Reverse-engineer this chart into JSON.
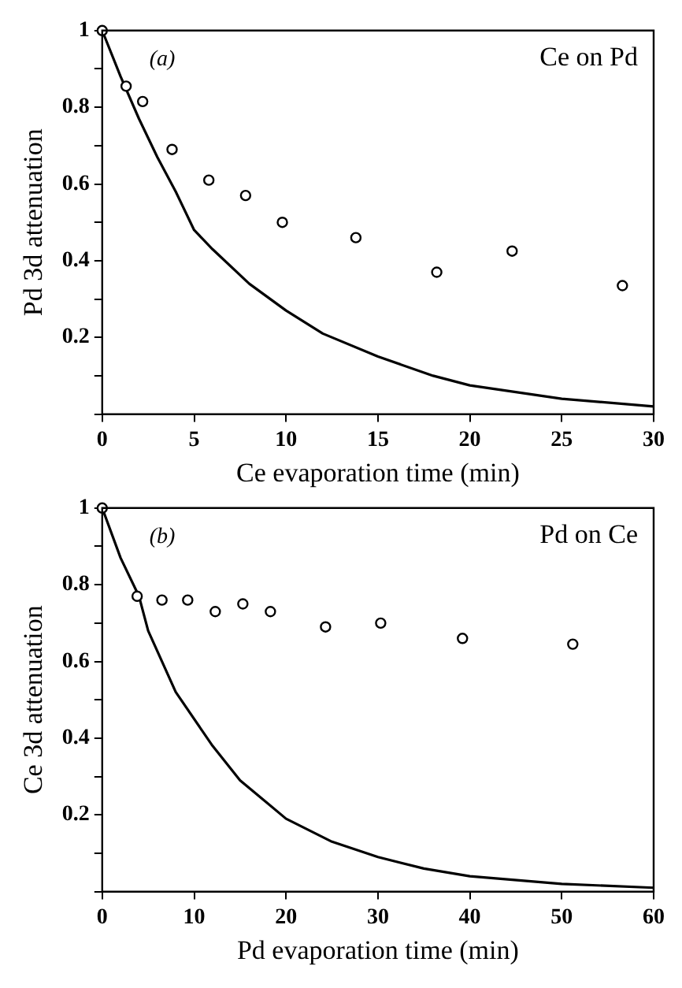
{
  "chart_data": [
    {
      "type": "scatter",
      "xlabel": "Ce evaporation time (min)",
      "ylabel": "Pd 3d attenuation",
      "annotations": [
        "(a)",
        "Ce on Pd"
      ],
      "xlim": [
        0,
        30
      ],
      "xticks": [
        0,
        5,
        10,
        15,
        20,
        25,
        30
      ],
      "ylim": [
        0,
        1
      ],
      "yticks": [
        {
          "value": 0,
          "label": null
        },
        {
          "value": 0.1,
          "label": null
        },
        0.2,
        {
          "value": 0.3,
          "label": null
        },
        0.4,
        {
          "value": 0.5,
          "label": null
        },
        0.6,
        {
          "value": 0.7,
          "label": null
        },
        0.8,
        {
          "value": 0.9,
          "label": null
        },
        1
      ],
      "grid": false,
      "legend": false,
      "series": [
        {
          "marker": "circle",
          "color": "#000000",
          "x": [
            0,
            1.3,
            2.2,
            3.8,
            5.8,
            7.8,
            9.8,
            13.8,
            18.2,
            22.3,
            28.3
          ],
          "values": [
            1,
            0.855,
            0.815,
            0.69,
            0.61,
            0.57,
            0.5,
            0.46,
            0.37,
            0.425,
            0.335
          ]
        },
        {
          "type": "line",
          "marker": "none",
          "line_style": "solid",
          "color": "#000000",
          "x": [
            0,
            1,
            2,
            3,
            4,
            5,
            6,
            8,
            10,
            12,
            15,
            18,
            20,
            25,
            30
          ],
          "values": [
            1,
            0.88,
            0.77,
            0.67,
            0.58,
            0.48,
            0.43,
            0.34,
            0.27,
            0.21,
            0.15,
            0.1,
            0.075,
            0.04,
            0.02
          ]
        }
      ]
    },
    {
      "type": "scatter",
      "xlabel": "Pd evaporation time (min)",
      "ylabel": "Ce 3d attenuation",
      "annotations": [
        "(b)",
        "Pd on Ce"
      ],
      "xlim": [
        0,
        60
      ],
      "xticks": [
        0,
        10,
        20,
        30,
        40,
        50,
        60
      ],
      "ylim": [
        0,
        1
      ],
      "yticks": [
        {
          "value": 0,
          "label": null
        },
        {
          "value": 0.1,
          "label": null
        },
        0.2,
        {
          "value": 0.3,
          "label": null
        },
        0.4,
        {
          "value": 0.5,
          "label": null
        },
        0.6,
        {
          "value": 0.7,
          "label": null
        },
        0.8,
        {
          "value": 0.9,
          "label": null
        },
        1
      ],
      "grid": false,
      "legend": false,
      "series": [
        {
          "marker": "circle",
          "color": "#000000",
          "x": [
            0,
            3.8,
            6.5,
            9.3,
            12.3,
            15.3,
            18.3,
            24.3,
            30.3,
            39.2,
            51.2
          ],
          "values": [
            1,
            0.77,
            0.76,
            0.76,
            0.73,
            0.75,
            0.73,
            0.69,
            0.7,
            0.66,
            0.645
          ]
        },
        {
          "type": "line",
          "marker": "none",
          "line_style": "solid",
          "color": "#000000",
          "x": [
            0,
            2,
            4,
            5,
            8,
            12,
            15,
            20,
            25,
            30,
            35,
            40,
            50,
            60
          ],
          "values": [
            1,
            0.87,
            0.77,
            0.68,
            0.52,
            0.38,
            0.29,
            0.19,
            0.13,
            0.09,
            0.06,
            0.04,
            0.02,
            0.01
          ]
        }
      ]
    }
  ]
}
